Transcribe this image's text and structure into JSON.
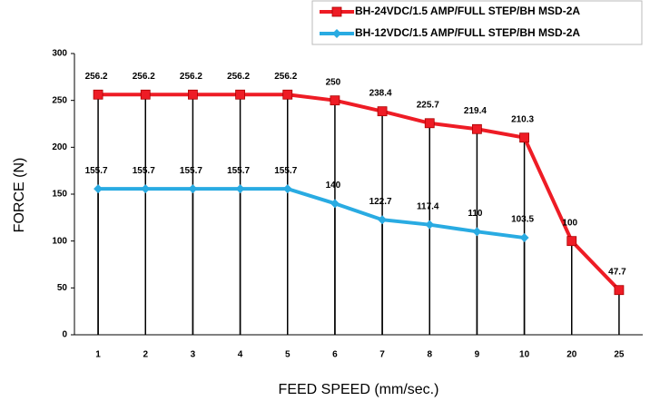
{
  "chart_data": {
    "type": "line",
    "categories": [
      "1",
      "2",
      "3",
      "4",
      "5",
      "6",
      "7",
      "8",
      "9",
      "10",
      "20",
      "25"
    ],
    "series": [
      {
        "name": "BH-24VDC/1.5 AMP/FULL STEP/BH MSD-2A",
        "color": "#ee1c25",
        "marker": "square",
        "values": [
          256.2,
          256.2,
          256.2,
          256.2,
          256.2,
          250,
          238.4,
          225.7,
          219.4,
          210.3,
          100,
          47.7
        ]
      },
      {
        "name": "BH-12VDC/1.5 AMP/FULL STEP/BH MSD-2A",
        "color": "#29abe2",
        "marker": "diamond",
        "values": [
          155.7,
          155.7,
          155.7,
          155.7,
          155.7,
          140,
          122.7,
          117.4,
          110,
          103.5,
          null,
          null
        ]
      }
    ],
    "ylim": [
      0,
      300
    ],
    "yticks": [
      0,
      50,
      100,
      150,
      200,
      250,
      300
    ],
    "xlabel": "FEED SPEED (mm/sec.)",
    "ylabel": "FORCE (N)",
    "drop_lines": true,
    "legend": "top-right"
  }
}
